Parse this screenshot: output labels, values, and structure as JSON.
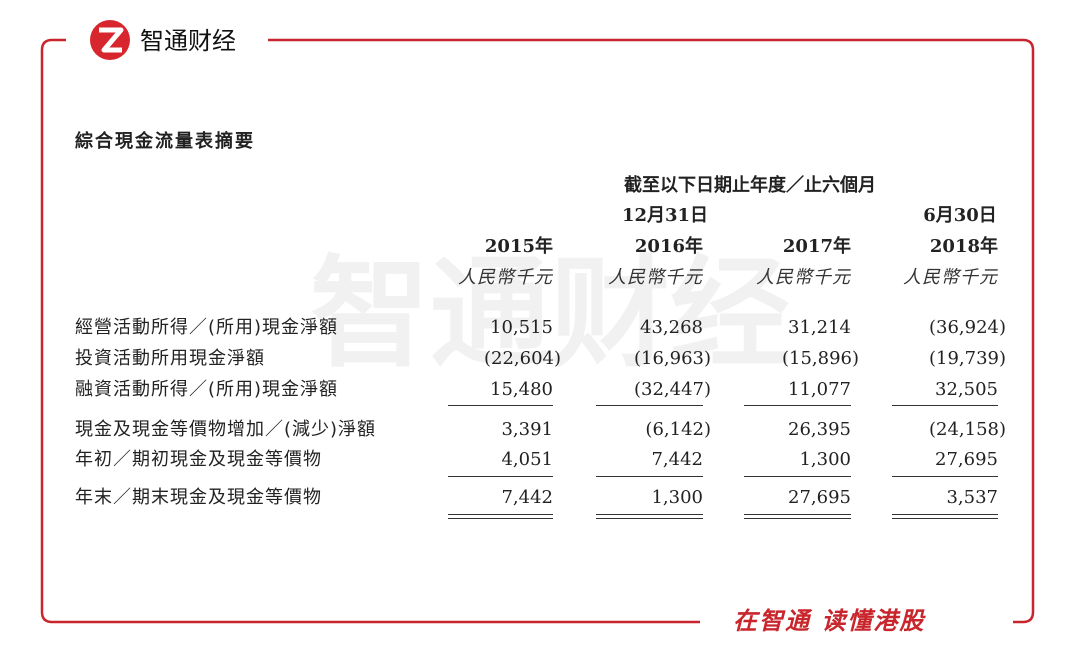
{
  "header": {
    "logo_text": "智通财经",
    "slogan": "在智通 读懂港股",
    "watermark": "智通财经"
  },
  "table": {
    "title": "綜合現金流量表摘要",
    "period_header": "截至以下日期止年度／止六個月",
    "date_headers": [
      "12月31日",
      "6月30日"
    ],
    "columns": [
      "2015年",
      "2016年",
      "2017年",
      "2018年"
    ],
    "unit": "人民幣千元",
    "rows": [
      {
        "label": "經營活動所得／(所用)現金淨額",
        "values": [
          "10,515",
          "43,268",
          "31,214",
          "(36,924)"
        ]
      },
      {
        "label": "投資活動所用現金淨額",
        "values": [
          "(22,604)",
          "(16,963)",
          "(15,896)",
          "(19,739)"
        ]
      },
      {
        "label": "融資活動所得／(所用)現金淨額",
        "values": [
          "15,480",
          "(32,447)",
          "11,077",
          "32,505"
        ]
      },
      {
        "label": "現金及現金等價物增加／(減少)淨額",
        "values": [
          "3,391",
          "(6,142)",
          "26,395",
          "(24,158)"
        ]
      },
      {
        "label": "年初／期初現金及現金等價物",
        "values": [
          "4,051",
          "7,442",
          "1,300",
          "27,695"
        ]
      },
      {
        "label": "年末／期末現金及現金等價物",
        "values": [
          "7,442",
          "1,300",
          "27,695",
          "3,537"
        ]
      }
    ]
  }
}
